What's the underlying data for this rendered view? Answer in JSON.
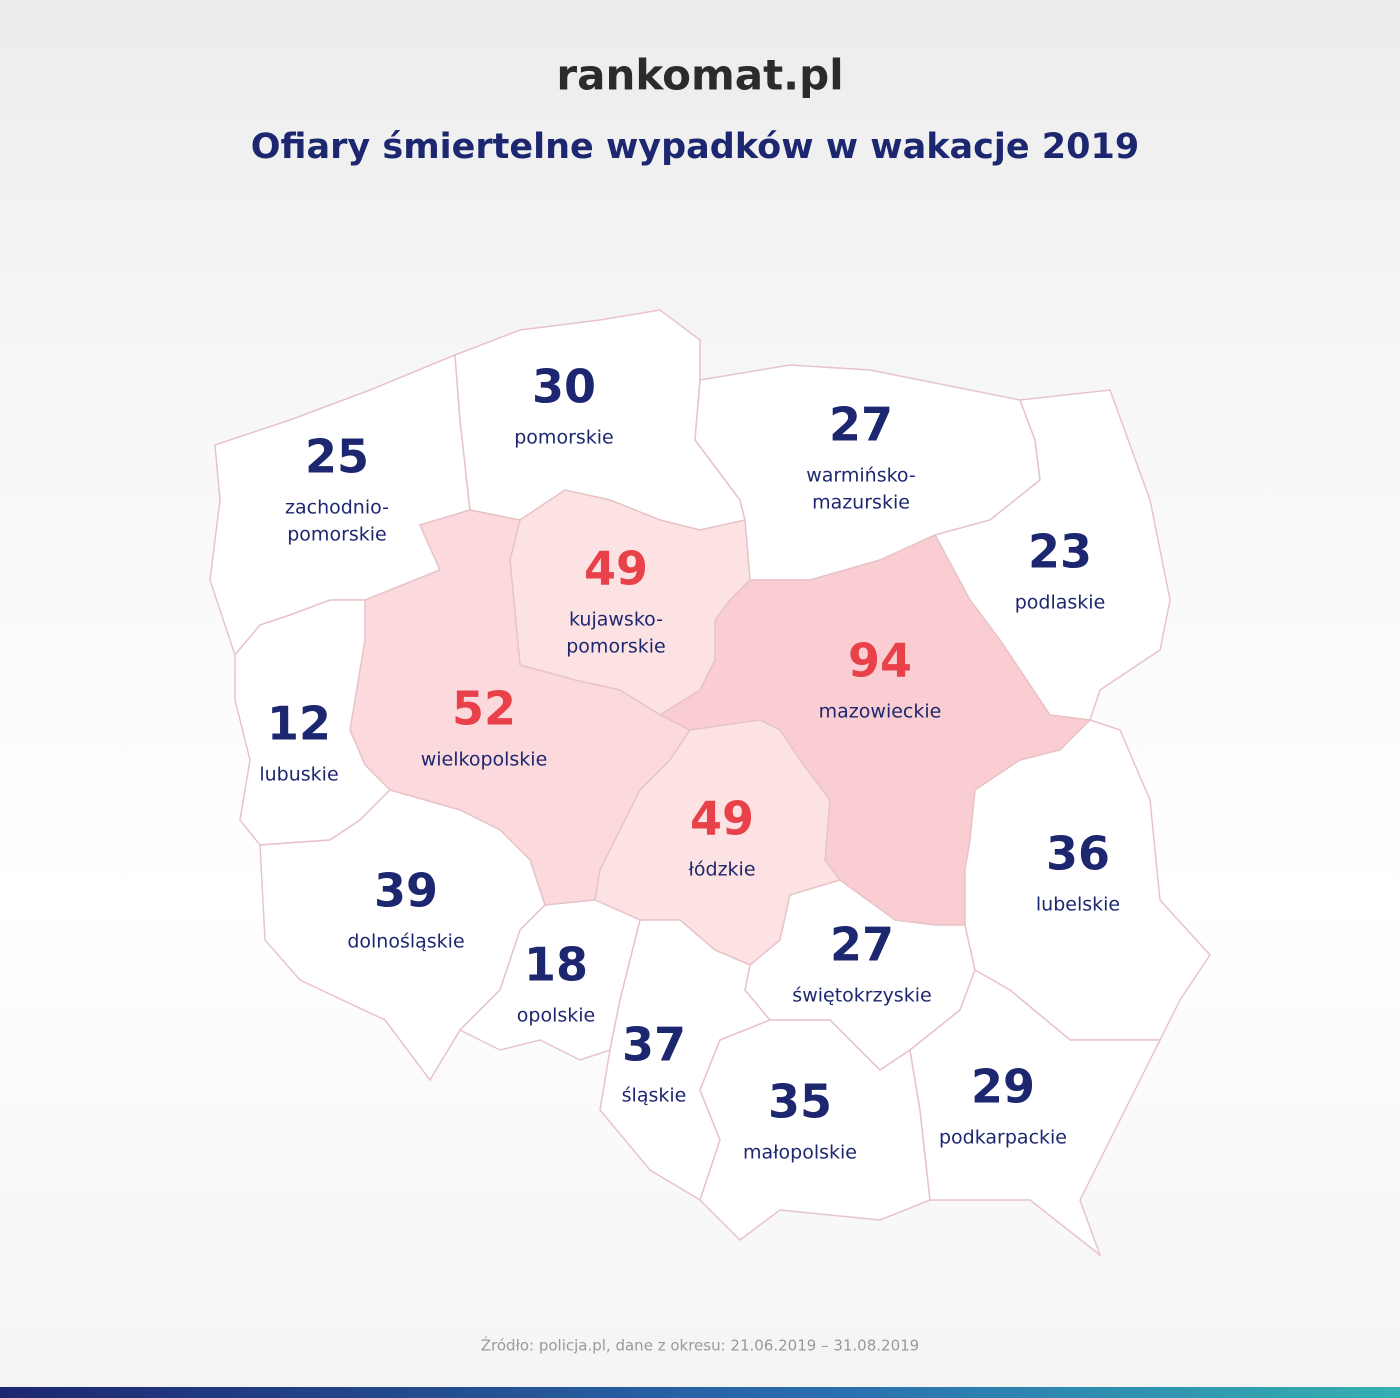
{
  "header": {
    "logo": "rankomat.pl",
    "title": "Ofiary śmiertelne wypadków w wakacje 2019"
  },
  "regions": [
    {
      "name": [
        "zachodnio-",
        "pomorskie"
      ],
      "value": 25,
      "fill": "#ffffff",
      "number_color": "#1d2770"
    },
    {
      "name": [
        "pomorskie"
      ],
      "value": 30,
      "fill": "#ffffff",
      "number_color": "#1d2770"
    },
    {
      "name": [
        "warmińsko-",
        "mazurskie"
      ],
      "value": 27,
      "fill": "#ffffff",
      "number_color": "#1d2770"
    },
    {
      "name": [
        "podlaskie"
      ],
      "value": 23,
      "fill": "#ffffff",
      "number_color": "#1d2770"
    },
    {
      "name": [
        "kujawsko-",
        "pomorskie"
      ],
      "value": 49,
      "fill": "#fde2e4",
      "number_color": "#e8414a"
    },
    {
      "name": [
        "wielkopolskie"
      ],
      "value": 52,
      "fill": "#fbd9dc",
      "number_color": "#e8414a"
    },
    {
      "name": [
        "mazowieckie"
      ],
      "value": 94,
      "fill": "#f9cdd1",
      "number_color": "#e8414a"
    },
    {
      "name": [
        "łódzkie"
      ],
      "value": 49,
      "fill": "#fde2e4",
      "number_color": "#e8414a"
    },
    {
      "name": [
        "lubuskie"
      ],
      "value": 12,
      "fill": "#ffffff",
      "number_color": "#1d2770"
    },
    {
      "name": [
        "dolnośląskie"
      ],
      "value": 39,
      "fill": "#ffffff",
      "number_color": "#1d2770"
    },
    {
      "name": [
        "opolskie"
      ],
      "value": 18,
      "fill": "#ffffff",
      "number_color": "#1d2770"
    },
    {
      "name": [
        "śląskie"
      ],
      "value": 37,
      "fill": "#ffffff",
      "number_color": "#1d2770"
    },
    {
      "name": [
        "świętokrzyskie"
      ],
      "value": 27,
      "fill": "#ffffff",
      "number_color": "#1d2770"
    },
    {
      "name": [
        "lubelskie"
      ],
      "value": 36,
      "fill": "#ffffff",
      "number_color": "#1d2770"
    },
    {
      "name": [
        "małopolskie"
      ],
      "value": 35,
      "fill": "#ffffff",
      "number_color": "#1d2770"
    },
    {
      "name": [
        "podkarpackie"
      ],
      "value": 29,
      "fill": "#ffffff",
      "number_color": "#1d2770"
    }
  ],
  "source": "Źródło: policja.pl, dane z okresu: 21.06.2019 – 31.08.2019"
}
